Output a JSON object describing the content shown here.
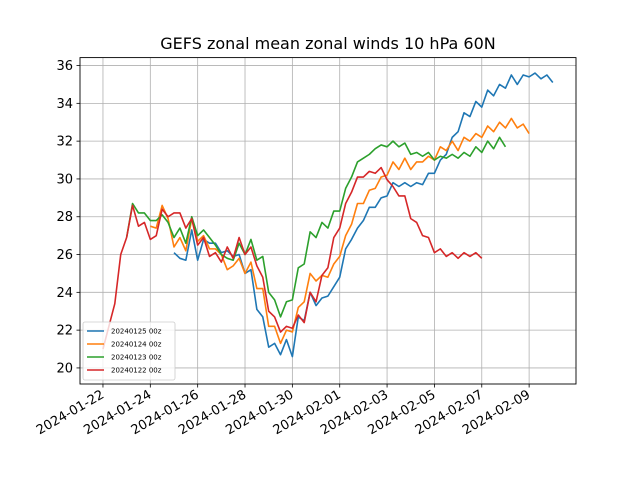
{
  "chart_data": {
    "type": "line",
    "title": "GEFS zonal mean zonal winds 10 hPa 60N",
    "xlabel": "",
    "ylabel": "",
    "x_axis": "date",
    "x_origin_date": "2024-01-22",
    "xlim_days": [
      -0.97,
      19.98
    ],
    "ylim": [
      19.15,
      36.42
    ],
    "grid": true,
    "legend_placement": "lower-left",
    "x_ticks": [
      {
        "day": 0,
        "label": "2024-01-22"
      },
      {
        "day": 2,
        "label": "2024-01-24"
      },
      {
        "day": 4,
        "label": "2024-01-26"
      },
      {
        "day": 6,
        "label": "2024-01-28"
      },
      {
        "day": 8,
        "label": "2024-01-30"
      },
      {
        "day": 10,
        "label": "2024-02-01"
      },
      {
        "day": 12,
        "label": "2024-02-03"
      },
      {
        "day": 14,
        "label": "2024-02-05"
      },
      {
        "day": 16,
        "label": "2024-02-07"
      },
      {
        "day": 18,
        "label": "2024-02-09"
      }
    ],
    "y_ticks": [
      {
        "value": 20,
        "label": "20"
      },
      {
        "value": 22,
        "label": "22"
      },
      {
        "value": 24,
        "label": "24"
      },
      {
        "value": 26,
        "label": "26"
      },
      {
        "value": 28,
        "label": "28"
      },
      {
        "value": 30,
        "label": "30"
      },
      {
        "value": 32,
        "label": "32"
      },
      {
        "value": 34,
        "label": "34"
      },
      {
        "value": 36,
        "label": "36"
      }
    ],
    "step_hours": 6,
    "series": [
      {
        "name": "20240125 00z",
        "color": "#1f77b4",
        "start_day": 3,
        "values": [
          26.1,
          25.8,
          25.7,
          27.3,
          25.7,
          26.8,
          26.6,
          26.6,
          26.1,
          26.2,
          25.9,
          26.0,
          25.0,
          25.2,
          23.1,
          22.7,
          21.1,
          21.3,
          20.7,
          21.5,
          20.6,
          22.7,
          22.5,
          24.0,
          23.3,
          23.7,
          23.8,
          24.3,
          24.8,
          26.3,
          26.8,
          27.4,
          27.8,
          28.5,
          28.5,
          29.0,
          29.1,
          29.8,
          29.6,
          29.8,
          29.6,
          29.8,
          29.7,
          30.3,
          30.3,
          31.0,
          31.3,
          32.2,
          32.5,
          33.5,
          33.3,
          34.1,
          33.8,
          34.7,
          34.4,
          35.0,
          34.8,
          35.5,
          35.0,
          35.5,
          35.4,
          35.6,
          35.3,
          35.5,
          35.1
        ]
      },
      {
        "name": "20240124 00z",
        "color": "#ff7f0e",
        "start_day": 2,
        "values": [
          27.5,
          27.4,
          28.6,
          27.9,
          26.4,
          26.9,
          26.2,
          27.9,
          26.7,
          27.0,
          26.3,
          26.3,
          26.0,
          25.2,
          25.4,
          25.8,
          25.0,
          25.6,
          24.2,
          24.2,
          22.2,
          22.2,
          21.3,
          22.0,
          21.9,
          23.2,
          23.5,
          25.0,
          24.6,
          24.9,
          24.8,
          25.5,
          25.9,
          27.0,
          27.6,
          28.7,
          28.7,
          29.4,
          29.5,
          30.1,
          30.2,
          30.9,
          30.5,
          31.1,
          30.5,
          30.9,
          30.9,
          31.2,
          31.0,
          31.7,
          31.5,
          32.0,
          31.5,
          32.2,
          32.0,
          32.4,
          32.2,
          32.8,
          32.5,
          33.0,
          32.7,
          33.2,
          32.7,
          32.9,
          32.4
        ]
      },
      {
        "name": "20240123 00z",
        "color": "#2ca02c",
        "start_day": 1,
        "values": [
          26.9,
          28.7,
          28.2,
          28.2,
          27.8,
          27.8,
          28.1,
          27.7,
          26.9,
          27.4,
          26.6,
          28.0,
          27.0,
          27.3,
          26.9,
          26.5,
          26.0,
          25.8,
          25.7,
          26.6,
          26.0,
          26.8,
          25.7,
          25.9,
          24.0,
          23.6,
          22.7,
          23.5,
          23.6,
          25.3,
          25.5,
          27.2,
          26.9,
          27.7,
          27.4,
          28.3,
          28.3,
          29.5,
          30.1,
          30.9,
          31.1,
          31.3,
          31.6,
          31.8,
          31.7,
          32.0,
          31.7,
          31.9,
          31.3,
          31.4,
          31.2,
          31.4,
          31.0,
          31.2,
          31.1,
          31.3,
          31.1,
          31.4,
          31.2,
          31.7,
          31.4,
          32.0,
          31.6,
          32.2,
          31.7
        ]
      },
      {
        "name": "20240122 00z",
        "color": "#d62728",
        "start_day": 0,
        "values": [
          21.0,
          22.2,
          23.4,
          26.0,
          26.9,
          28.6,
          27.5,
          27.7,
          26.8,
          27.0,
          28.4,
          28.0,
          28.2,
          28.2,
          27.4,
          27.9,
          26.5,
          26.9,
          25.9,
          26.1,
          25.6,
          26.4,
          25.8,
          26.9,
          26.0,
          26.4,
          25.4,
          24.8,
          23.0,
          22.7,
          21.9,
          22.2,
          22.1,
          22.8,
          22.4,
          24.0,
          23.5,
          24.9,
          25.3,
          26.9,
          27.4,
          28.7,
          29.3,
          30.1,
          30.1,
          30.4,
          30.3,
          30.6,
          29.96,
          29.6,
          29.1,
          29.1,
          27.9,
          27.7,
          27.0,
          26.9,
          26.1,
          26.3,
          25.9,
          26.1,
          25.8,
          26.1,
          25.9,
          26.1,
          25.8
        ]
      }
    ]
  }
}
